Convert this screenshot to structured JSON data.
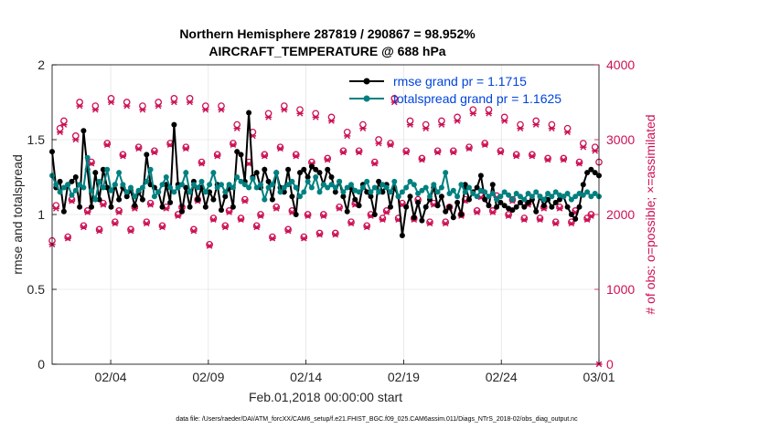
{
  "chart_data": {
    "type": "line",
    "title": "Northern Hemisphere 287819 / 290867 = 98.952%",
    "subtitle": "AIRCRAFT_TEMPERATURE @ 688 hPa",
    "xlabel": "Feb.01,2018 00:00:00 start",
    "ylabel": "rmse and totalspread",
    "ylabel_right": "# of obs: o=possible; ×=assimilated",
    "footer": "data file: /Users/raeder/DAI/ATM_forcXX/CAM6_setup/f.e21.FHIST_BGC.f09_025.CAM6assim.011/Diags_NTrS_2018-02/obs_diag_output.nc",
    "x_range": [
      1,
      29
    ],
    "y_left_range": [
      0,
      2
    ],
    "y_right_range": [
      0,
      4000
    ],
    "x_ticks": [
      {
        "x": 4,
        "label": "02/04"
      },
      {
        "x": 9,
        "label": "02/09"
      },
      {
        "x": 14,
        "label": "02/14"
      },
      {
        "x": 19,
        "label": "02/19"
      },
      {
        "x": 24,
        "label": "02/24"
      },
      {
        "x": 29,
        "label": "03/01"
      }
    ],
    "y_left_ticks": [
      "0",
      "0.5",
      "1",
      "1.5",
      "2"
    ],
    "y_right_ticks": [
      "0",
      "1000",
      "2000",
      "3000",
      "4000"
    ],
    "legend": {
      "position": "top-right",
      "entries": [
        "rmse grand pr = 1.1715",
        "totalspread grand pr = 1.1625"
      ]
    },
    "series": [
      {
        "name": "rmse",
        "color": "#000000",
        "values": [
          1.42,
          1.18,
          1.22,
          1.02,
          1.2,
          1.22,
          1.25,
          1.05,
          1.56,
          1.3,
          1.05,
          1.28,
          1.1,
          1.3,
          1.18,
          1.05,
          1.2,
          1.1,
          1.18,
          1.12,
          1.16,
          1.06,
          1.15,
          1.1,
          1.4,
          1.2,
          1.18,
          1.15,
          1.05,
          1.2,
          1.08,
          1.6,
          1.2,
          1.02,
          1.18,
          1.05,
          1.22,
          1.1,
          1.18,
          1.05,
          1.15,
          1.1,
          1.2,
          1.03,
          1.12,
          1.18,
          1.05,
          1.42,
          1.4,
          1.22,
          1.68,
          1.25,
          1.28,
          1.18,
          1.3,
          1.22,
          1.1,
          1.28,
          1.18,
          1.15,
          1.3,
          1.12,
          1.0,
          1.28,
          1.3,
          1.25,
          1.32,
          1.3,
          1.28,
          1.2,
          1.3,
          1.25,
          1.15,
          1.22,
          1.12,
          1.02,
          1.18,
          1.1,
          1.06,
          1.2,
          1.15,
          1.12,
          1.0,
          1.22,
          1.15,
          1.2,
          1.05,
          1.18,
          1.12,
          0.86,
          1.05,
          1.12,
          0.98,
          1.08,
          0.96,
          1.05,
          1.1,
          1.18,
          1.06,
          1.12,
          1.02,
          1.05,
          0.98,
          1.08,
          1.0,
          1.2,
          1.1,
          1.15,
          1.18,
          1.26,
          1.1,
          1.06,
          1.2,
          1.05,
          1.08,
          1.06,
          1.04,
          1.03,
          1.05,
          1.08,
          1.05,
          1.08,
          1.1,
          1.02,
          1.12,
          1.06,
          1.1,
          1.05,
          1.08,
          1.1,
          1.12,
          1.05,
          1.0,
          0.97,
          1.05,
          1.2,
          1.28,
          1.3,
          1.28,
          1.26
        ]
      },
      {
        "name": "totalspread",
        "color": "#008080",
        "values": [
          1.26,
          1.2,
          1.15,
          1.18,
          1.2,
          1.13,
          1.16,
          1.2,
          1.18,
          1.38,
          1.16,
          1.1,
          1.22,
          1.18,
          1.3,
          1.16,
          1.2,
          1.28,
          1.2,
          1.15,
          1.18,
          1.12,
          1.16,
          1.18,
          1.22,
          1.3,
          1.12,
          1.15,
          1.2,
          1.25,
          1.18,
          1.15,
          1.18,
          1.2,
          1.28,
          1.15,
          1.2,
          1.18,
          1.22,
          1.15,
          1.2,
          1.28,
          1.18,
          1.2,
          1.15,
          1.2,
          1.18,
          1.25,
          1.22,
          1.2,
          1.18,
          1.24,
          1.18,
          1.2,
          1.1,
          1.18,
          1.2,
          1.28,
          1.15,
          1.18,
          1.2,
          1.22,
          1.18,
          1.12,
          1.15,
          1.22,
          1.18,
          1.25,
          1.15,
          1.2,
          1.18,
          1.2,
          1.18,
          1.22,
          1.15,
          1.18,
          1.2,
          1.16,
          1.15,
          1.18,
          1.22,
          1.15,
          1.18,
          1.15,
          1.2,
          1.18,
          1.15,
          1.22,
          1.12,
          1.15,
          1.18,
          1.22,
          1.2,
          1.14,
          1.16,
          1.18,
          1.12,
          1.2,
          1.15,
          1.18,
          1.28,
          1.14,
          1.16,
          1.12,
          1.2,
          1.15,
          1.18,
          1.14,
          1.12,
          1.16,
          1.15,
          1.12,
          1.14,
          1.1,
          1.12,
          1.15,
          1.13,
          1.1,
          1.14,
          1.12,
          1.1,
          1.14,
          1.12,
          1.15,
          1.12,
          1.1,
          1.14,
          1.12,
          1.15,
          1.13,
          1.12,
          1.14,
          1.1,
          1.12,
          1.14,
          1.13,
          1.15,
          1.12,
          1.14,
          1.12
        ]
      },
      {
        "name": "obs possible",
        "color": "#cc1155",
        "marker": "o",
        "values": [
          1650,
          2120,
          3150,
          3250,
          1700,
          2200,
          3050,
          3500,
          1850,
          2050,
          2700,
          3450,
          1800,
          2150,
          2950,
          3550,
          1900,
          2050,
          2800,
          3500,
          1800,
          2100,
          2900,
          3450,
          1900,
          2150,
          2850,
          3500,
          1850,
          2100,
          2950,
          3550,
          2000,
          2100,
          2900,
          3550,
          1800,
          2200,
          2700,
          3450,
          1600,
          1950,
          2800,
          3450,
          1850,
          2050,
          2950,
          3200,
          1950,
          2200,
          2700,
          3100,
          1850,
          2000,
          2800,
          3350,
          1700,
          2100,
          2900,
          3450,
          1800,
          2050,
          2800,
          3400,
          1700,
          2000,
          2700,
          3350,
          1750,
          2000,
          2750,
          3300,
          1750,
          2100,
          2850,
          3100,
          1900,
          2150,
          2850,
          3200,
          1850,
          2000,
          2700,
          3000,
          1950,
          2050,
          2950,
          3550,
          1950,
          2150,
          2850,
          3250,
          1950,
          2200,
          2750,
          3200,
          1900,
          2150,
          2850,
          3250,
          1900,
          2100,
          2850,
          3300,
          2000,
          2200,
          2900,
          3400,
          2050,
          2250,
          2950,
          3400,
          2050,
          2250,
          2850,
          3300,
          2000,
          2200,
          2800,
          3200,
          1950,
          2150,
          2800,
          3250,
          1950,
          2100,
          2750,
          3200,
          1900,
          2100,
          2750,
          3150,
          1900,
          2050,
          2700,
          2950,
          1950,
          2000,
          2900,
          2700
        ]
      },
      {
        "name": "obs assimilated",
        "color": "#cc1155",
        "marker": "x",
        "values": [
          1600,
          2080,
          3100,
          3200,
          1680,
          2180,
          3000,
          3450,
          1830,
          2030,
          2680,
          3400,
          1780,
          2130,
          2930,
          3500,
          1880,
          2030,
          2780,
          3450,
          1780,
          2080,
          2880,
          3400,
          1880,
          2130,
          2830,
          3450,
          1830,
          2080,
          2930,
          3500,
          1980,
          2080,
          2880,
          3500,
          1780,
          2180,
          2680,
          3400,
          1580,
          1930,
          2780,
          3400,
          1830,
          2030,
          2930,
          3150,
          1930,
          2180,
          2680,
          3050,
          1830,
          1980,
          2780,
          3300,
          1680,
          2080,
          2880,
          3400,
          1780,
          2030,
          2780,
          3350,
          1680,
          1980,
          2680,
          3300,
          1730,
          1980,
          2730,
          3250,
          1730,
          2080,
          2830,
          3050,
          1880,
          2130,
          2830,
          3150,
          1830,
          1980,
          2680,
          2950,
          1930,
          2030,
          2930,
          3500,
          1930,
          2130,
          2830,
          3200,
          1930,
          2180,
          2730,
          3150,
          1880,
          2130,
          2830,
          3200,
          1880,
          2080,
          2830,
          3250,
          1980,
          2180,
          2880,
          3350,
          2030,
          2230,
          2930,
          3350,
          2030,
          2230,
          2830,
          3250,
          1980,
          2180,
          2780,
          3150,
          1930,
          2130,
          2780,
          3200,
          1930,
          2080,
          2730,
          3150,
          1880,
          2080,
          2730,
          3100,
          1880,
          2030,
          2680,
          2900,
          1930,
          1980,
          2850,
          0
        ]
      }
    ]
  }
}
